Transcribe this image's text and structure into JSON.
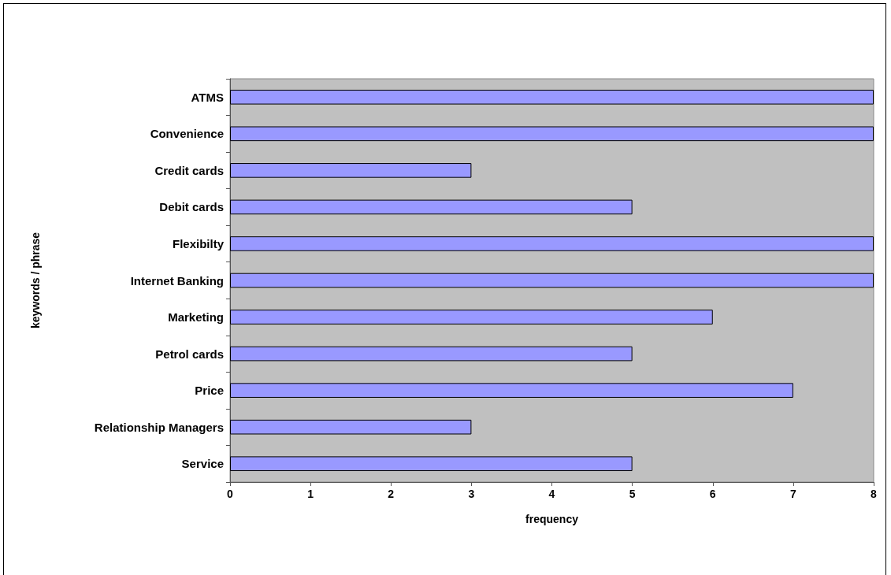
{
  "chart_data": {
    "type": "bar",
    "orientation": "horizontal",
    "xlabel": "frequency",
    "ylabel": "keywords / phrase",
    "categories": [
      "ATMS",
      "Convenience",
      "Credit cards",
      "Debit cards",
      "Flexibilty",
      "Internet Banking",
      "Marketing",
      "Petrol cards",
      "Price",
      "Relationship Managers",
      "Service"
    ],
    "values": [
      8,
      8,
      3,
      5,
      8,
      8,
      6,
      5,
      7,
      3,
      5
    ],
    "color": "#9999ff",
    "xlim": [
      0,
      8
    ],
    "xticks": [
      0,
      1,
      2,
      3,
      4,
      5,
      6,
      7,
      8
    ],
    "grid": false
  }
}
